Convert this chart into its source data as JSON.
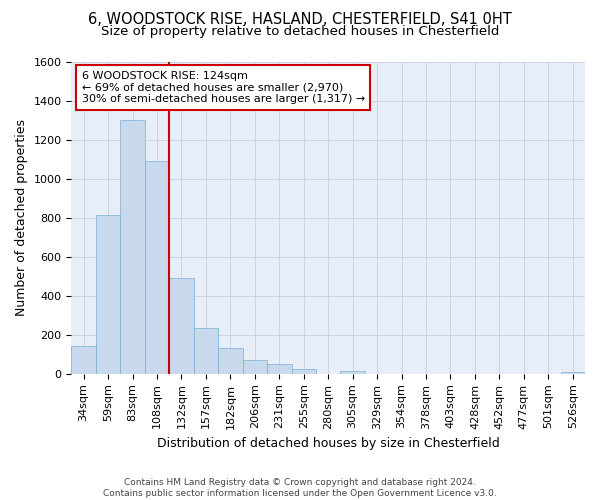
{
  "title_line1": "6, WOODSTOCK RISE, HASLAND, CHESTERFIELD, S41 0HT",
  "title_line2": "Size of property relative to detached houses in Chesterfield",
  "xlabel": "Distribution of detached houses by size in Chesterfield",
  "ylabel": "Number of detached properties",
  "categories": [
    "34sqm",
    "59sqm",
    "83sqm",
    "108sqm",
    "132sqm",
    "157sqm",
    "182sqm",
    "206sqm",
    "231sqm",
    "255sqm",
    "280sqm",
    "305sqm",
    "329sqm",
    "354sqm",
    "378sqm",
    "403sqm",
    "428sqm",
    "452sqm",
    "477sqm",
    "501sqm",
    "526sqm"
  ],
  "values": [
    140,
    815,
    1300,
    1090,
    490,
    235,
    130,
    70,
    48,
    25,
    0,
    15,
    0,
    0,
    0,
    0,
    0,
    0,
    0,
    0,
    10
  ],
  "bar_color": "#c8d9ee",
  "bar_edge_color": "#7bafd4",
  "grid_color": "#c8cfe0",
  "background_color": "#e8eef8",
  "vline_x_index": 4,
  "vline_color": "#cc0000",
  "annotation_text": "6 WOODSTOCK RISE: 124sqm\n← 69% of detached houses are smaller (2,970)\n30% of semi-detached houses are larger (1,317) →",
  "annotation_box_color": "#ffffff",
  "annotation_box_edge": "#cc0000",
  "ylim": [
    0,
    1600
  ],
  "yticks": [
    0,
    200,
    400,
    600,
    800,
    1000,
    1200,
    1400,
    1600
  ],
  "footer": "Contains HM Land Registry data © Crown copyright and database right 2024.\nContains public sector information licensed under the Open Government Licence v3.0.",
  "title_fontsize": 10.5,
  "subtitle_fontsize": 9.5,
  "axis_label_fontsize": 9,
  "tick_fontsize": 8,
  "annotation_fontsize": 8,
  "footer_fontsize": 6.5
}
